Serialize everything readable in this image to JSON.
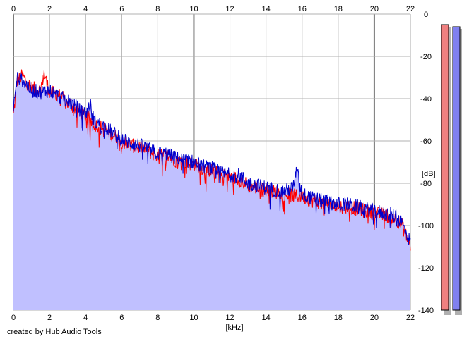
{
  "chart_data": {
    "type": "line",
    "title": "",
    "xlabel": "[kHz]",
    "ylabel": "[dB]",
    "xlim": [
      0,
      22
    ],
    "ylim": [
      -140,
      0
    ],
    "x_ticks": [
      0,
      2,
      4,
      6,
      8,
      10,
      12,
      14,
      16,
      18,
      20,
      22
    ],
    "y_ticks": [
      0,
      -20,
      -40,
      -60,
      -80,
      -100,
      -120,
      -140
    ],
    "y_tick_labels": [
      "0",
      "-20",
      "-40",
      "-60",
      "-80",
      "-100",
      "-120",
      "-140"
    ],
    "grid": true,
    "legend": "none",
    "series": [
      {
        "color": "#ff0000",
        "x": [
          0,
          0.2,
          0.5,
          0.8,
          1,
          1.5,
          1.7,
          2,
          2.5,
          3,
          3.5,
          4,
          4.5,
          5,
          5.5,
          6,
          6.5,
          7,
          7.5,
          8,
          8.5,
          9,
          9.5,
          10,
          10.5,
          11,
          11.5,
          12,
          12.5,
          13,
          13.5,
          14,
          14.5,
          15,
          15.5,
          16,
          16.5,
          17,
          17.5,
          18,
          18.5,
          19,
          19.5,
          20,
          20.5,
          21,
          21.5,
          22
        ],
        "y": [
          -48,
          -32,
          -29,
          -33,
          -35,
          -36,
          -28,
          -37,
          -38,
          -42,
          -45,
          -48,
          -52,
          -54,
          -57,
          -60,
          -62,
          -63,
          -65,
          -67,
          -67,
          -69,
          -70,
          -71,
          -73,
          -74,
          -76,
          -77,
          -78,
          -81,
          -82,
          -83,
          -84,
          -85,
          -86,
          -86,
          -88,
          -89,
          -90,
          -91,
          -91,
          -92,
          -93,
          -94,
          -95,
          -96,
          -99,
          -110
        ]
      },
      {
        "color": "#0000cc",
        "x": [
          0,
          0.2,
          0.5,
          0.8,
          1,
          1.5,
          2,
          2.5,
          3,
          3.5,
          4,
          4.3,
          4.5,
          5,
          5.5,
          6,
          6.5,
          7,
          7.5,
          8,
          8.5,
          9,
          9.5,
          10,
          10.5,
          11,
          11.5,
          12,
          12.5,
          13,
          13.5,
          14,
          14.5,
          15,
          15.5,
          15.7,
          16,
          16.5,
          17,
          17.5,
          18,
          18.5,
          19,
          19.5,
          20,
          20.5,
          21,
          21.5,
          22
        ],
        "y": [
          -45,
          -30,
          -31,
          -34,
          -36,
          -37,
          -36,
          -39,
          -41,
          -44,
          -47,
          -43,
          -51,
          -53,
          -56,
          -59,
          -61,
          -62,
          -64,
          -66,
          -66,
          -68,
          -69,
          -70,
          -72,
          -73,
          -75,
          -76,
          -76,
          -80,
          -81,
          -82,
          -83,
          -84,
          -82,
          -74,
          -85,
          -87,
          -88,
          -89,
          -90,
          -90,
          -91,
          -92,
          -93,
          -94,
          -95,
          -98,
          -108
        ]
      }
    ],
    "fill": {
      "color": "#c0c0ff",
      "description": ""
    },
    "level_meters": [
      {
        "color": "#f08080",
        "top_db": -5,
        "bottom_db": -140
      },
      {
        "color": "#8080f0",
        "top_db": -6,
        "bottom_db": -140
      }
    ]
  },
  "footer": {
    "credit": "created by Hub Audio Tools"
  }
}
